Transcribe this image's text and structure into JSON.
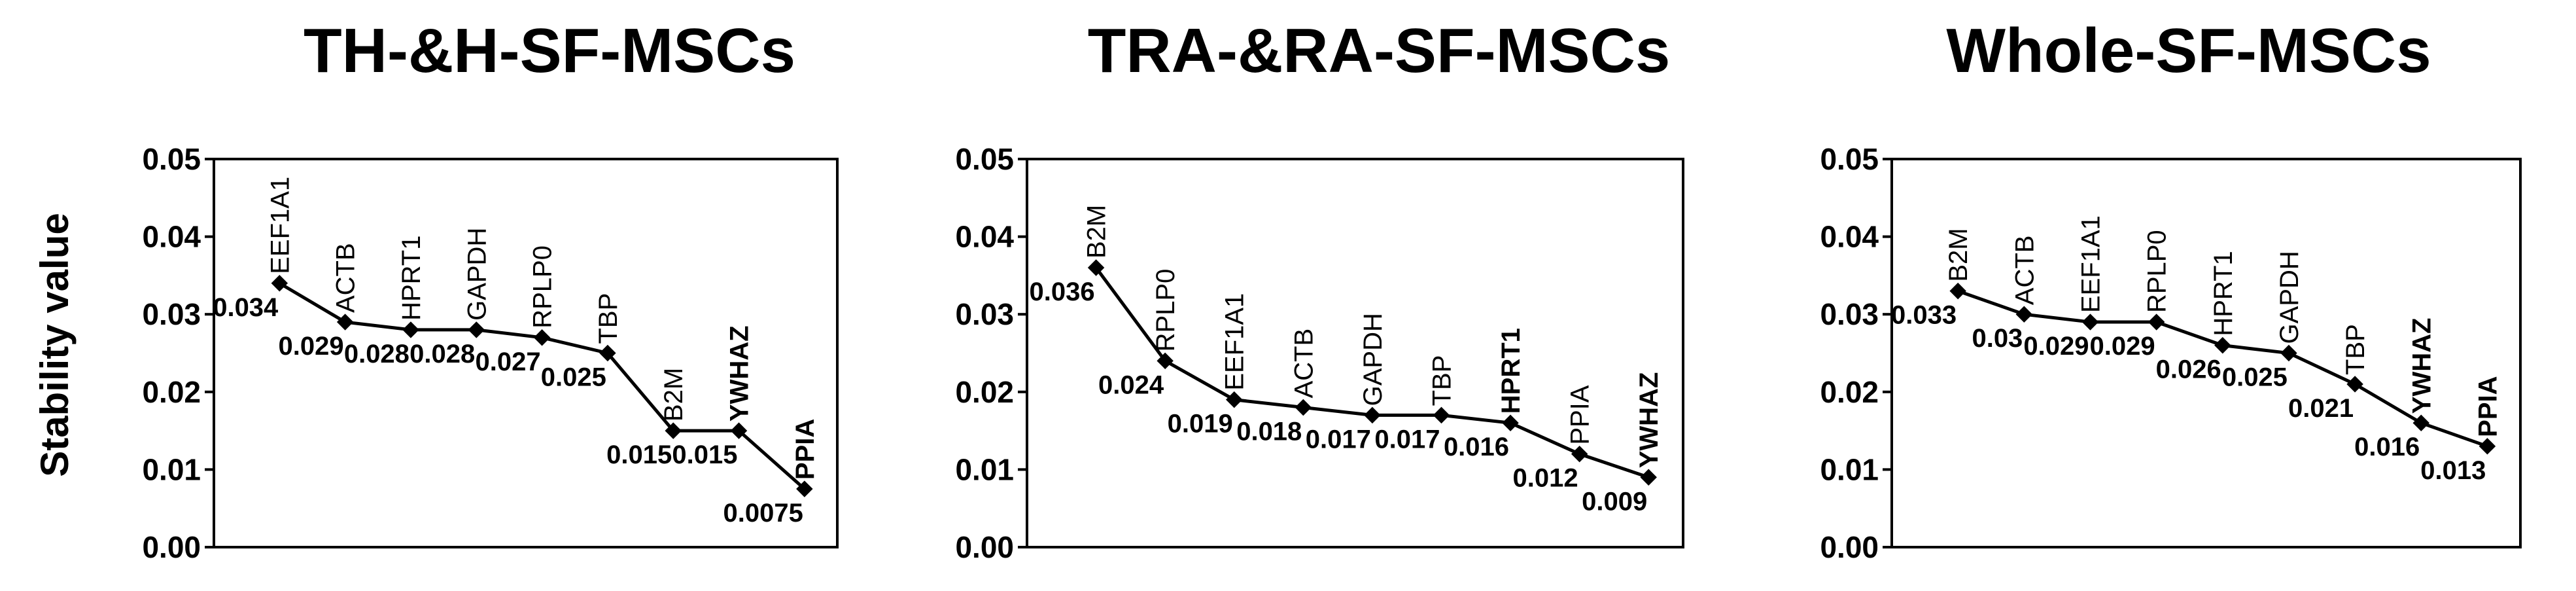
{
  "chart_data": [
    {
      "type": "line",
      "title": "TH-&H-SF-MSCs",
      "ylabel": "Stability value",
      "categories": [
        "EEF1A1",
        "ACTB",
        "HPRT1",
        "GAPDH",
        "RPLP0",
        "TBP",
        "B2M",
        "YWHAZ",
        "PPIA"
      ],
      "emphasized": [
        false,
        false,
        false,
        false,
        false,
        false,
        false,
        true,
        true
      ],
      "values": [
        0.034,
        0.029,
        0.028,
        0.028,
        0.027,
        0.025,
        0.015,
        0.015,
        0.0075
      ],
      "color": "#000000",
      "ylim": [
        0,
        0.05
      ],
      "yticks": [
        {
          "value": 0,
          "label": "0.00"
        },
        0.01,
        0.02,
        0.03,
        0.04,
        0.05
      ]
    },
    {
      "type": "line",
      "title": "TRA-&RA-SF-MSCs",
      "categories": [
        "B2M",
        "RPLP0",
        "EEF1A1",
        "ACTB",
        "GAPDH",
        "TBP",
        "HPRT1",
        "PPIA",
        "YWHAZ"
      ],
      "emphasized": [
        false,
        false,
        false,
        false,
        false,
        false,
        true,
        false,
        true
      ],
      "values": [
        0.036,
        0.024,
        0.019,
        0.018,
        0.017,
        0.017,
        0.016,
        0.012,
        0.009
      ],
      "color": "#000000",
      "ylim": [
        0,
        0.05
      ],
      "yticks": [
        {
          "value": 0,
          "label": "0.00"
        },
        0.01,
        0.02,
        0.03,
        0.04,
        0.05
      ]
    },
    {
      "type": "line",
      "title": "Whole-SF-MSCs",
      "categories": [
        "B2M",
        "ACTB",
        "EEF1A1",
        "RPLP0",
        "HPRT1",
        "GAPDH",
        "TBP",
        "YWHAZ",
        "PPIA"
      ],
      "emphasized": [
        false,
        false,
        false,
        false,
        false,
        false,
        false,
        true,
        true
      ],
      "values": [
        0.033,
        0.03,
        0.029,
        0.029,
        0.026,
        0.025,
        0.021,
        0.016,
        0.013
      ],
      "color": "#000000",
      "ylim": [
        0,
        0.05
      ],
      "yticks": [
        {
          "value": 0,
          "label": "0.00"
        },
        0.01,
        0.02,
        0.03,
        0.04,
        0.05
      ]
    }
  ]
}
